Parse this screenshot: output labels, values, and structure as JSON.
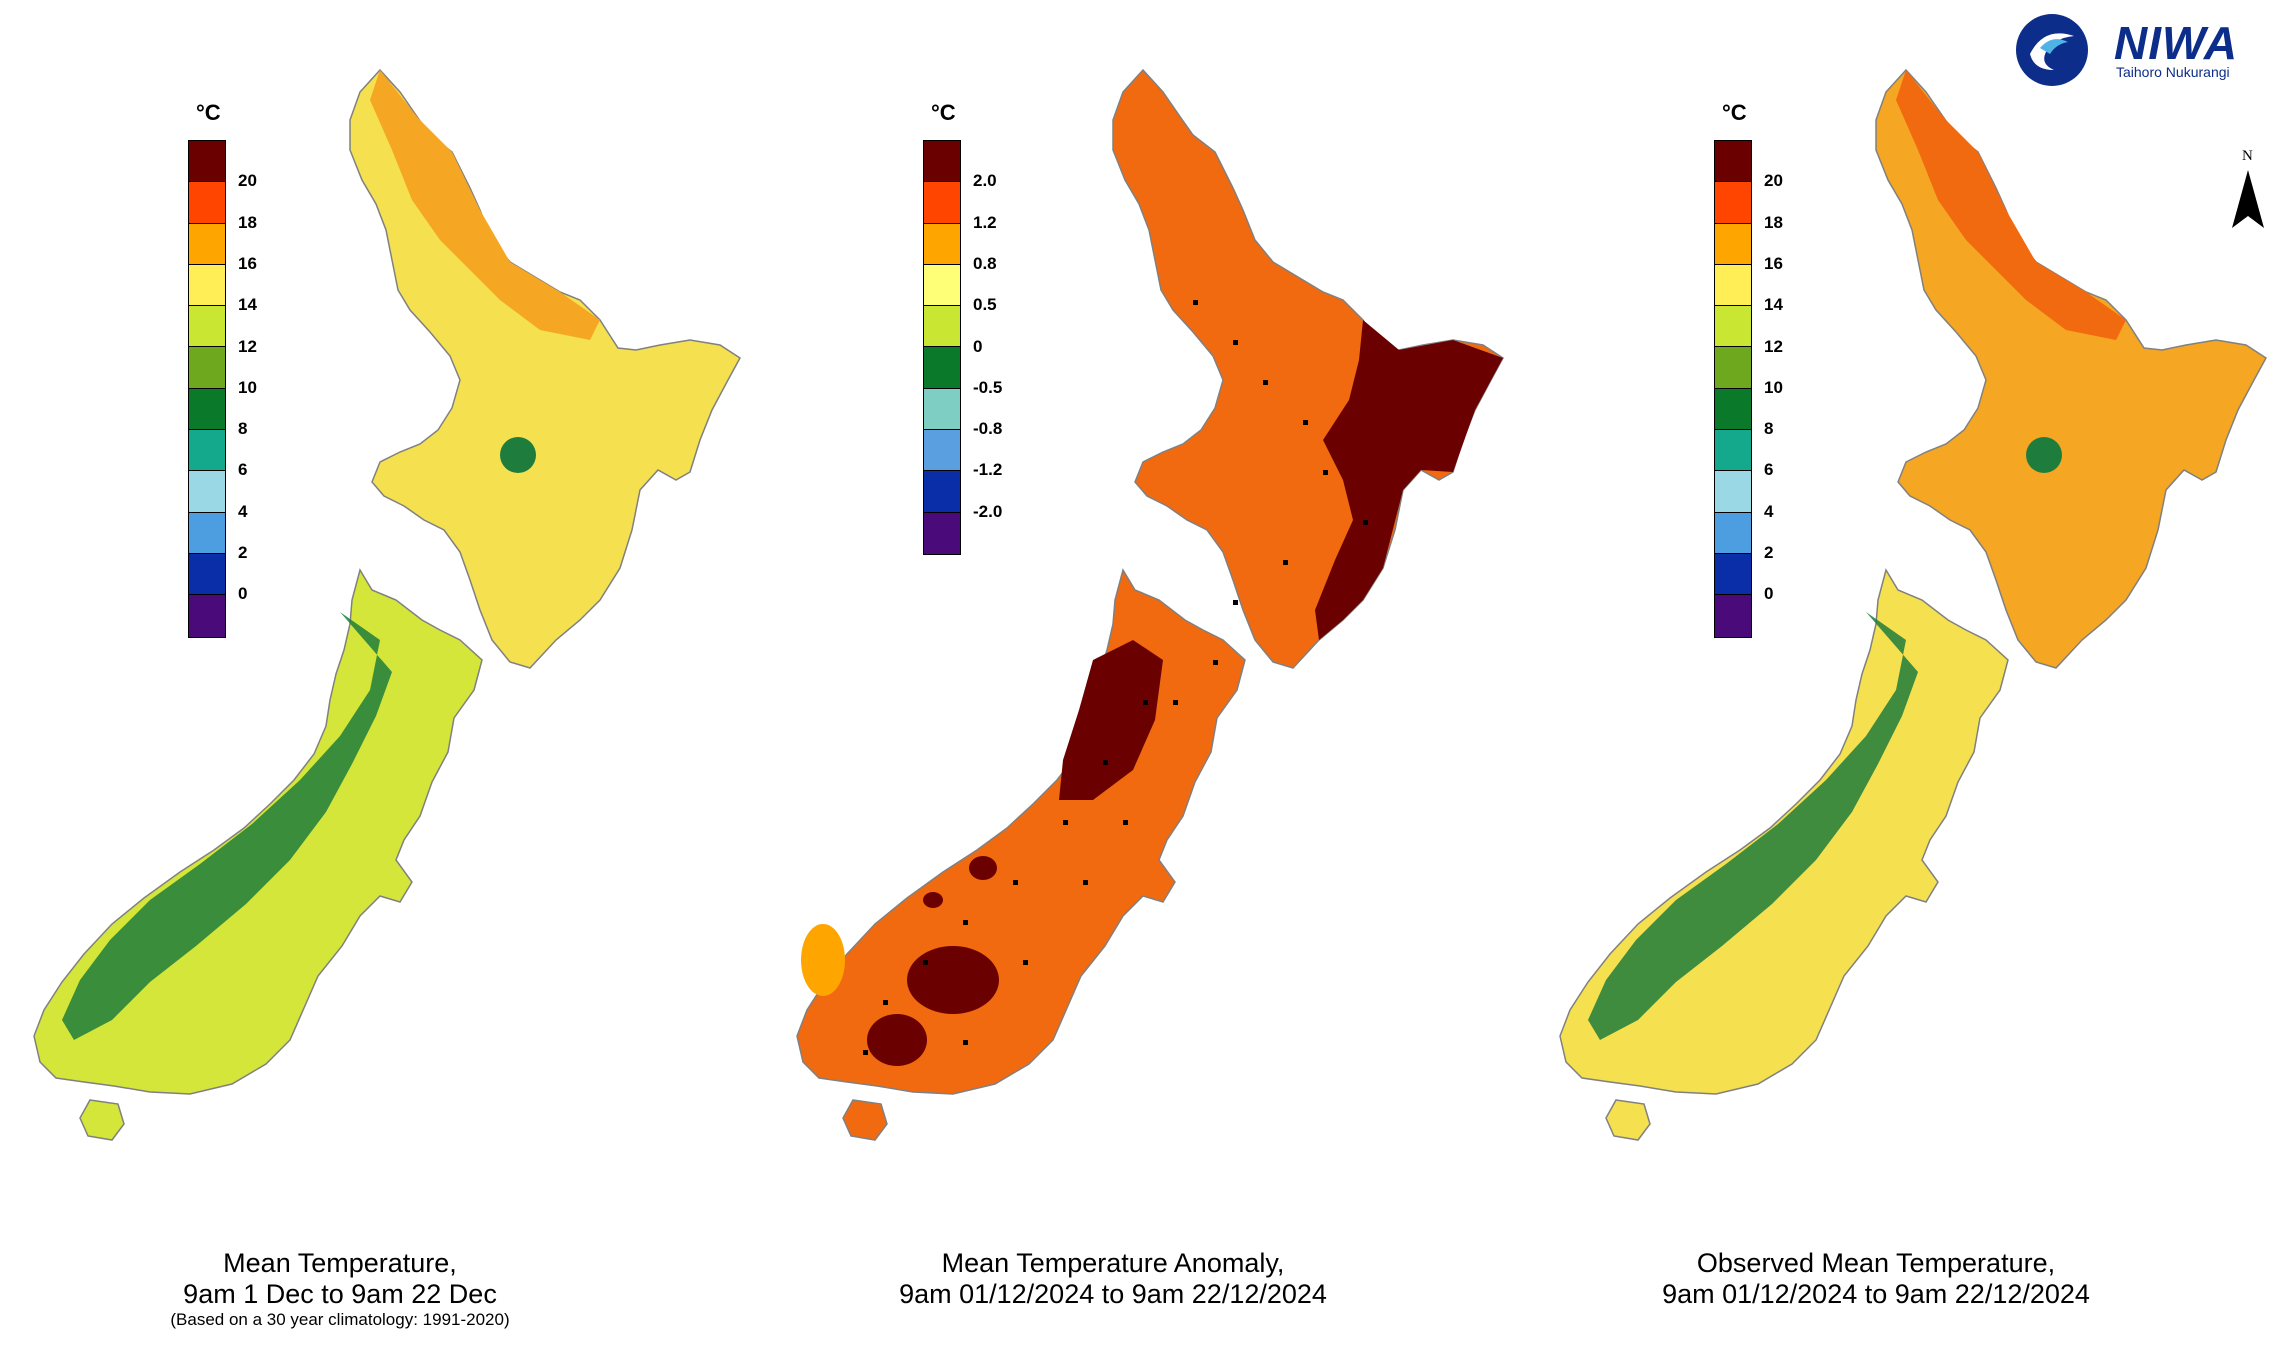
{
  "logo": {
    "name": "NIWA",
    "tagline": "Taihoro Nukurangi",
    "color": "#0d2d8a"
  },
  "north_arrow": {
    "label": "N"
  },
  "panels": [
    {
      "legend_unit": "°C",
      "legend_colors": [
        "#6b0000",
        "#ff4500",
        "#ffa500",
        "#ffee55",
        "#c8e632",
        "#6ea81e",
        "#0a7a2a",
        "#14a88c",
        "#9ad8e6",
        "#4d9ee0",
        "#0a2ea8",
        "#4a0a7a"
      ],
      "legend_ticks": [
        "20",
        "18",
        "16",
        "14",
        "12",
        "10",
        "8",
        "6",
        "4",
        "2",
        "0"
      ],
      "caption_line1": "Mean Temperature,",
      "caption_line2": "9am 1 Dec to 9am 22 Dec",
      "caption_note": "(Based on a 30 year climatology: 1991-2020)",
      "map_colors": {
        "north": "#f5e050",
        "north_warm": "#f5a623",
        "south": "#d4e63a",
        "alpine": "#1e7d3c"
      }
    },
    {
      "legend_unit": "°C",
      "legend_colors": [
        "#6b0000",
        "#ff4500",
        "#ffa500",
        "#ffff77",
        "#c8e632",
        "#0a7a2a",
        "#7ecec4",
        "#5aa0e0",
        "#0a2ea8",
        "#4a0a7a"
      ],
      "legend_ticks": [
        "2.0",
        "1.2",
        "0.8",
        "0.5",
        "0",
        "-0.5",
        "-0.8",
        "-1.2",
        "-2.0"
      ],
      "caption_line1": "Mean Temperature Anomaly,",
      "caption_line2": "9am 01/12/2024 to 9am 22/12/2024",
      "caption_note": "",
      "map_colors": {
        "north": "#f26a0f",
        "north_warm": "#6b0000",
        "south": "#f26a0f",
        "alpine": "#6b0000"
      }
    },
    {
      "legend_unit": "°C",
      "legend_colors": [
        "#6b0000",
        "#ff4500",
        "#ffa500",
        "#ffee55",
        "#c8e632",
        "#6ea81e",
        "#0a7a2a",
        "#14a88c",
        "#9ad8e6",
        "#4d9ee0",
        "#0a2ea8",
        "#4a0a7a"
      ],
      "legend_ticks": [
        "20",
        "18",
        "16",
        "14",
        "12",
        "10",
        "8",
        "6",
        "4",
        "2",
        "0"
      ],
      "caption_line1": "Observed Mean Temperature,",
      "caption_line2": "9am 01/12/2024 to 9am 22/12/2024",
      "caption_note": "",
      "map_colors": {
        "north": "#f5a623",
        "north_warm": "#f26a0f",
        "south": "#f5e050",
        "alpine": "#1e7d3c"
      }
    }
  ]
}
